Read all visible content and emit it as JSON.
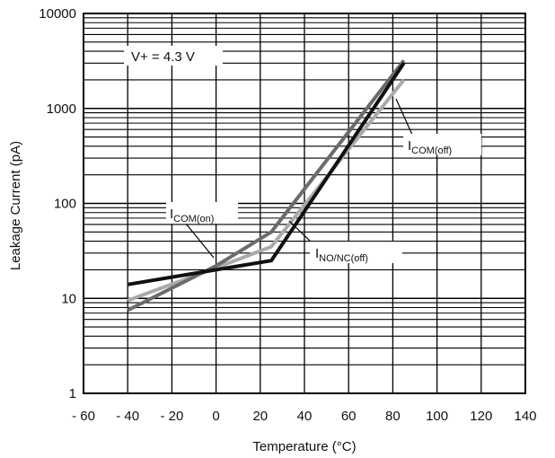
{
  "chart_data": {
    "type": "line",
    "xlabel": "Temperature (°C)",
    "ylabel": "Leakage Current (pA)",
    "xlim": [
      -60,
      140
    ],
    "ylim": [
      1,
      10000
    ],
    "yscale": "log",
    "grid": true,
    "x_ticks": [
      "- 60",
      "- 40",
      "- 20",
      "0",
      "20",
      "40",
      "60",
      "80",
      "100",
      "120",
      "140"
    ],
    "y_ticks": [
      "1",
      "10",
      "100",
      "1000",
      "10000"
    ],
    "series": [
      {
        "name": "INO/NC(off)",
        "label_main": "I",
        "label_sub": "NO/NC(off)",
        "color": "#111111",
        "x": [
          -40,
          0,
          25,
          85
        ],
        "y": [
          14,
          20,
          25,
          3000
        ]
      },
      {
        "name": "ICOM(on)",
        "label_main": "I",
        "label_sub": "COM(on)",
        "color": "#6b6b6b",
        "x": [
          -40,
          0,
          25,
          85
        ],
        "y": [
          7.5,
          22,
          50,
          3200
        ]
      },
      {
        "name": "ICOM(off)",
        "label_main": "I",
        "label_sub": "COM(off)",
        "color": "#aaaaaa",
        "x": [
          -40,
          0,
          25,
          85
        ],
        "y": [
          9.5,
          21,
          35,
          2000
        ]
      }
    ],
    "annotations": {
      "condition": "V+ = 4.3 V"
    }
  }
}
